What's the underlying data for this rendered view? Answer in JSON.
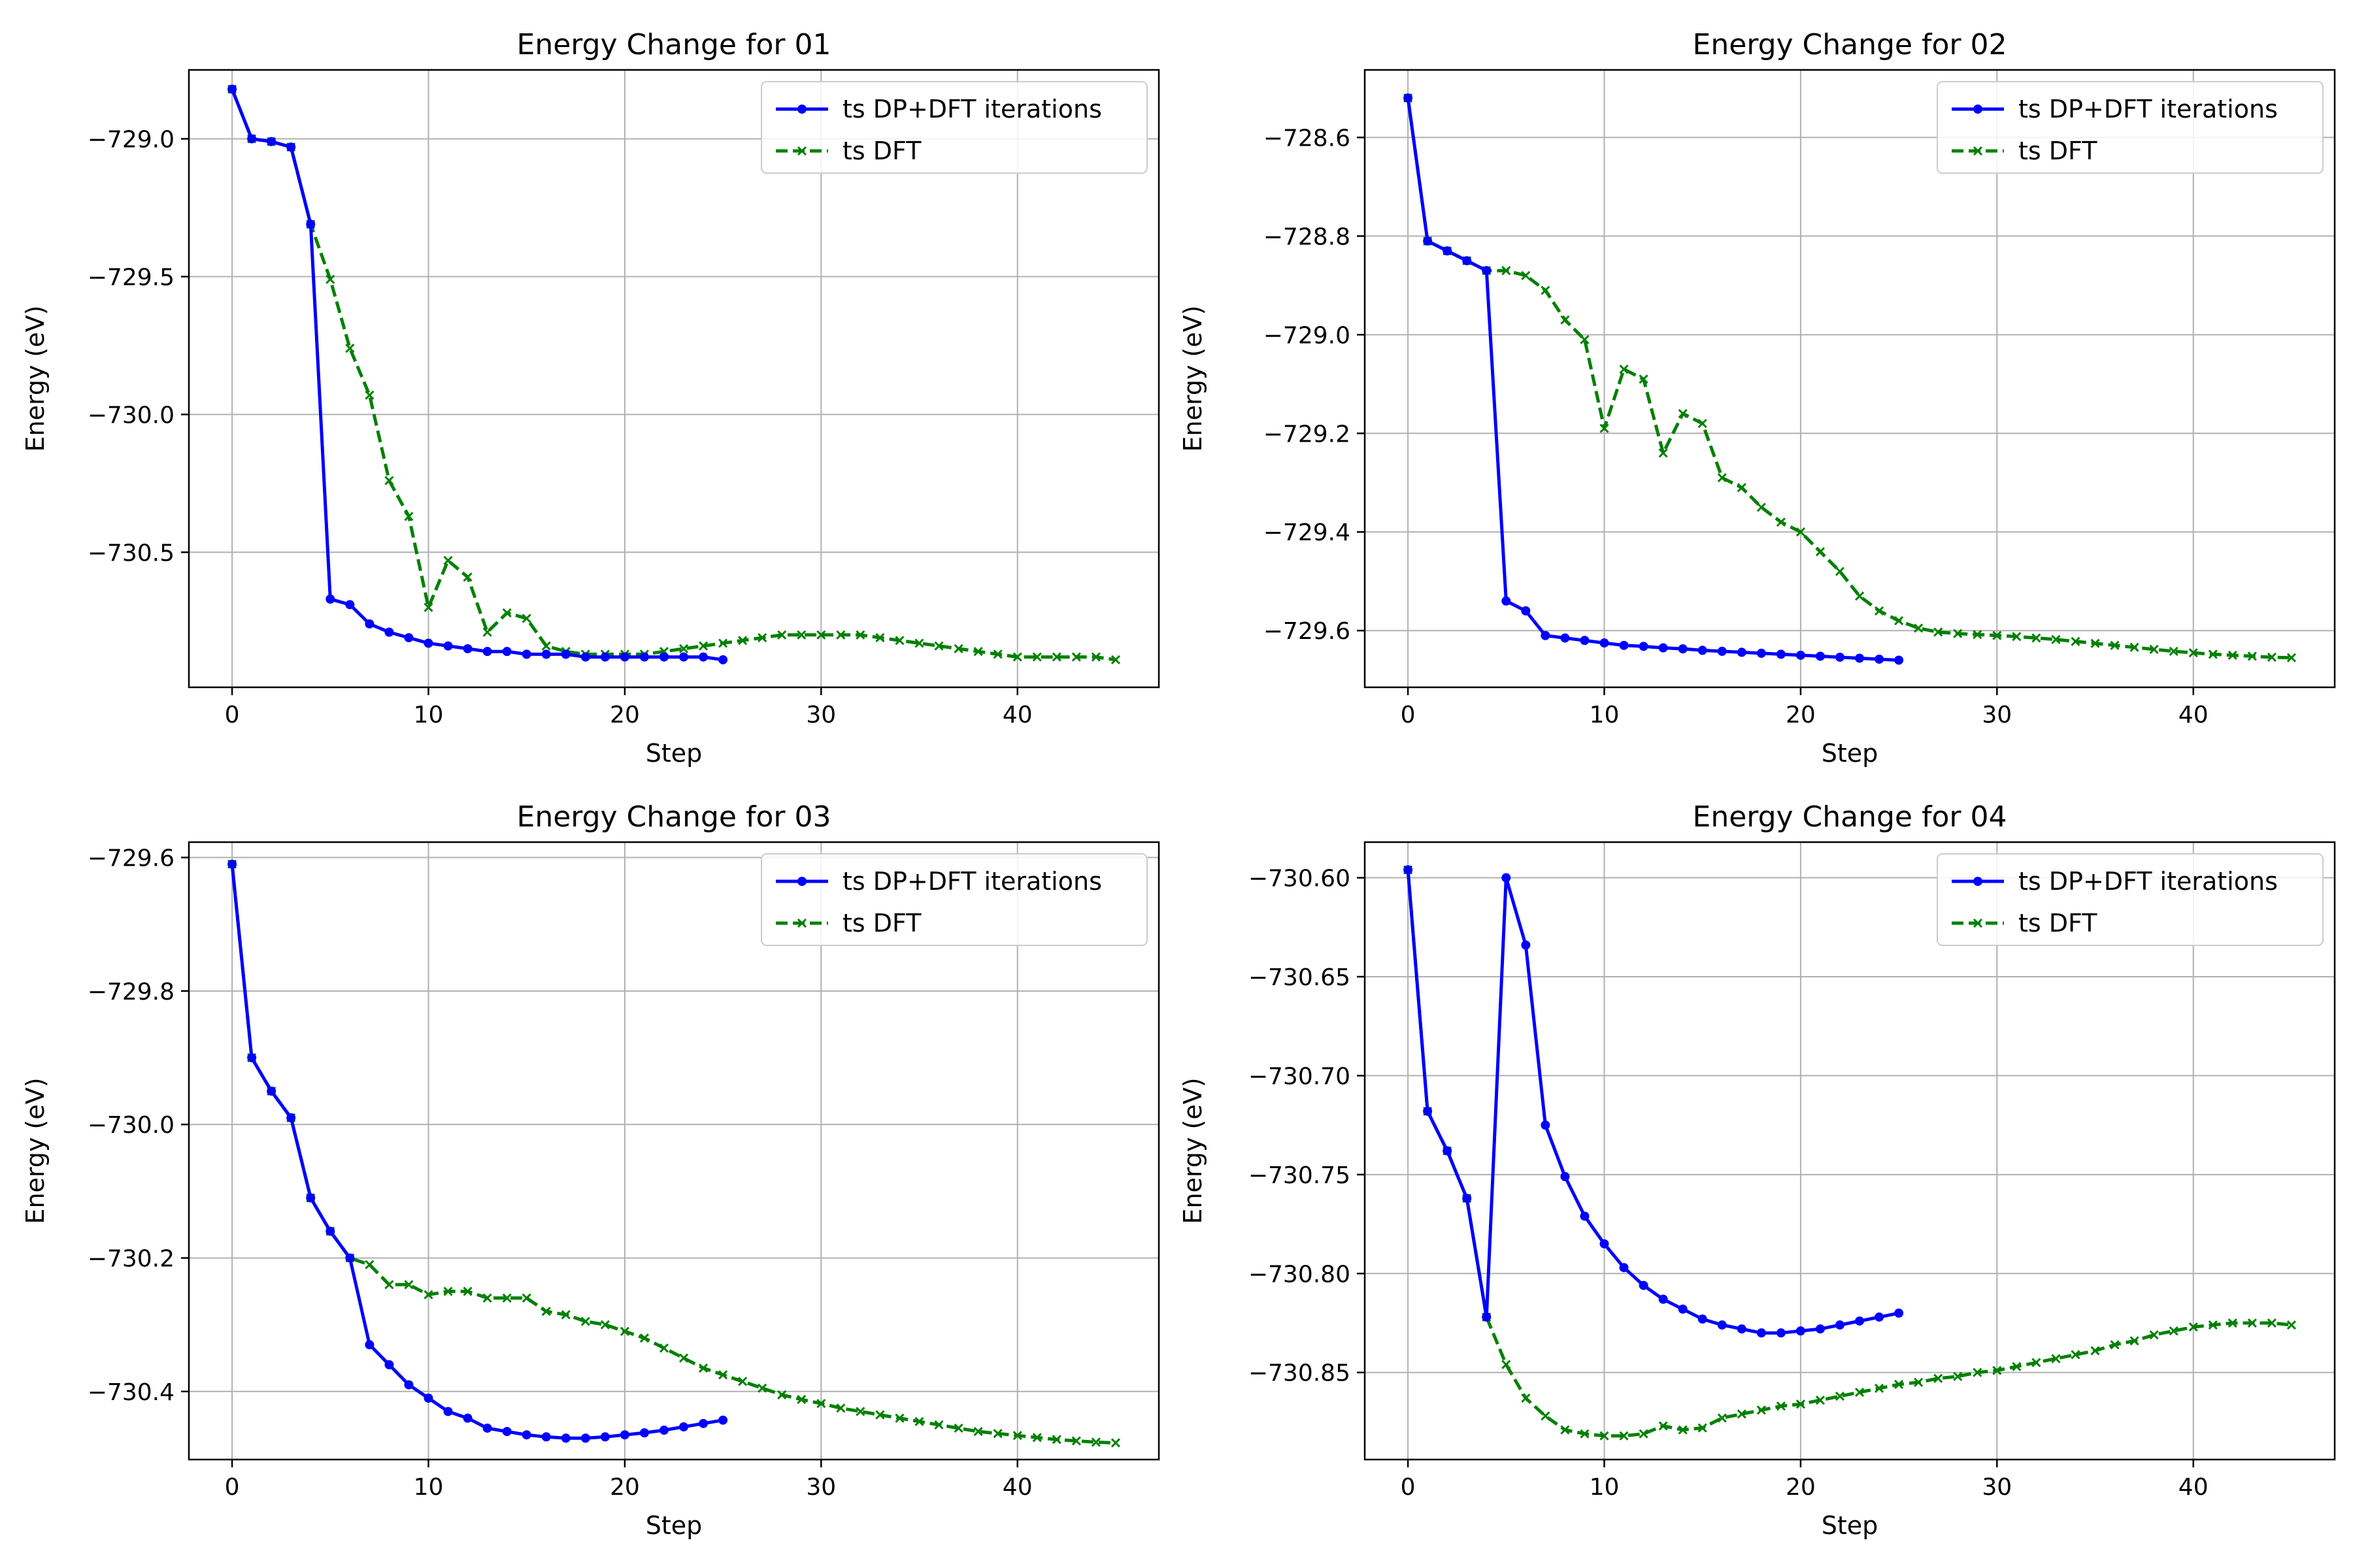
{
  "chart_data": [
    {
      "type": "line",
      "title": "Energy Change for 01",
      "xlabel": "Step",
      "ylabel": "Energy (eV)",
      "xlim": [
        -2.2,
        47.2
      ],
      "ylim": [
        -730.99,
        -728.75
      ],
      "xticks": [
        0,
        10,
        20,
        30,
        40
      ],
      "xtick_labels": [
        "0",
        "10",
        "20",
        "30",
        "40"
      ],
      "yticks": [
        -729.0,
        -729.5,
        -730.0,
        -730.5
      ],
      "ytick_labels": [
        "−729.0",
        "−729.5",
        "−730.0",
        "−730.5"
      ],
      "grid": true,
      "legend": "top-right",
      "series": [
        {
          "name": "ts DP+DFT iterations",
          "color": "#0000ff",
          "style": "solid",
          "marker": "dot",
          "x": [
            0,
            1,
            2,
            3,
            4,
            5,
            6,
            7,
            8,
            9,
            10,
            11,
            12,
            13,
            14,
            15,
            16,
            17,
            18,
            19,
            20,
            21,
            22,
            23,
            24,
            25
          ],
          "y": [
            -728.82,
            -729.0,
            -729.01,
            -729.03,
            -729.31,
            -730.67,
            -730.69,
            -730.76,
            -730.79,
            -730.81,
            -730.83,
            -730.84,
            -730.85,
            -730.86,
            -730.86,
            -730.87,
            -730.87,
            -730.87,
            -730.88,
            -730.88,
            -730.88,
            -730.88,
            -730.88,
            -730.88,
            -730.88,
            -730.89
          ]
        },
        {
          "name": "ts DFT",
          "color": "#008000",
          "style": "dashed",
          "marker": "x",
          "x": [
            0,
            1,
            2,
            3,
            4,
            5,
            6,
            7,
            8,
            9,
            10,
            11,
            12,
            13,
            14,
            15,
            16,
            17,
            18,
            19,
            20,
            21,
            22,
            23,
            24,
            25,
            26,
            27,
            28,
            29,
            30,
            31,
            32,
            33,
            34,
            35,
            36,
            37,
            38,
            39,
            40,
            41,
            42,
            43,
            44,
            45
          ],
          "y": [
            -728.82,
            -729.0,
            -729.01,
            -729.03,
            -729.31,
            -729.51,
            -729.76,
            -729.93,
            -730.24,
            -730.37,
            -730.7,
            -730.53,
            -730.59,
            -730.79,
            -730.72,
            -730.74,
            -730.84,
            -730.86,
            -730.87,
            -730.87,
            -730.87,
            -730.87,
            -730.86,
            -730.85,
            -730.84,
            -730.83,
            -730.82,
            -730.81,
            -730.8,
            -730.8,
            -730.8,
            -730.8,
            -730.8,
            -730.81,
            -730.82,
            -730.83,
            -730.84,
            -730.85,
            -730.86,
            -730.87,
            -730.88,
            -730.88,
            -730.88,
            -730.88,
            -730.88,
            -730.89
          ]
        }
      ]
    },
    {
      "type": "line",
      "title": "Energy Change for 02",
      "xlabel": "Step",
      "ylabel": "Energy (eV)",
      "xlim": [
        -2.2,
        47.2
      ],
      "ylim": [
        -729.715,
        -728.463
      ],
      "xticks": [
        0,
        10,
        20,
        30,
        40
      ],
      "xtick_labels": [
        "0",
        "10",
        "20",
        "30",
        "40"
      ],
      "yticks": [
        -728.6,
        -728.8,
        -729.0,
        -729.2,
        -729.4,
        -729.6
      ],
      "ytick_labels": [
        "−728.6",
        "−728.8",
        "−729.0",
        "−729.2",
        "−729.4",
        "−729.6"
      ],
      "grid": true,
      "legend": "top-right",
      "series": [
        {
          "name": "ts DP+DFT iterations",
          "color": "#0000ff",
          "style": "solid",
          "marker": "dot",
          "x": [
            0,
            1,
            2,
            3,
            4,
            5,
            6,
            7,
            8,
            9,
            10,
            11,
            12,
            13,
            14,
            15,
            16,
            17,
            18,
            19,
            20,
            21,
            22,
            23,
            24,
            25
          ],
          "y": [
            -728.52,
            -728.81,
            -728.83,
            -728.85,
            -728.87,
            -729.54,
            -729.56,
            -729.61,
            -729.615,
            -729.62,
            -729.625,
            -729.63,
            -729.632,
            -729.635,
            -729.637,
            -729.64,
            -729.642,
            -729.644,
            -729.646,
            -729.648,
            -729.65,
            -729.652,
            -729.654,
            -729.656,
            -729.658,
            -729.66
          ]
        },
        {
          "name": "ts DFT",
          "color": "#008000",
          "style": "dashed",
          "marker": "x",
          "x": [
            0,
            1,
            2,
            3,
            4,
            5,
            6,
            7,
            8,
            9,
            10,
            11,
            12,
            13,
            14,
            15,
            16,
            17,
            18,
            19,
            20,
            21,
            22,
            23,
            24,
            25,
            26,
            27,
            28,
            29,
            30,
            31,
            32,
            33,
            34,
            35,
            36,
            37,
            38,
            39,
            40,
            41,
            42,
            43,
            44,
            45
          ],
          "y": [
            -728.52,
            -728.81,
            -728.83,
            -728.85,
            -728.87,
            -728.87,
            -728.88,
            -728.91,
            -728.97,
            -729.01,
            -729.19,
            -729.07,
            -729.09,
            -729.24,
            -729.16,
            -729.18,
            -729.29,
            -729.31,
            -729.35,
            -729.38,
            -729.4,
            -729.44,
            -729.48,
            -729.53,
            -729.56,
            -729.58,
            -729.595,
            -729.603,
            -729.606,
            -729.608,
            -729.61,
            -729.612,
            -729.615,
            -729.618,
            -729.622,
            -729.626,
            -729.63,
            -729.634,
            -729.638,
            -729.642,
            -729.645,
            -729.648,
            -729.65,
            -729.652,
            -729.654,
            -729.655
          ]
        }
      ]
    },
    {
      "type": "line",
      "title": "Energy Change for 03",
      "xlabel": "Step",
      "ylabel": "Energy (eV)",
      "xlim": [
        -2.2,
        47.2
      ],
      "ylim": [
        -730.502,
        -729.577
      ],
      "xticks": [
        0,
        10,
        20,
        30,
        40
      ],
      "xtick_labels": [
        "0",
        "10",
        "20",
        "30",
        "40"
      ],
      "yticks": [
        -729.6,
        -729.8,
        -730.0,
        -730.2,
        -730.4
      ],
      "ytick_labels": [
        "−729.6",
        "−729.8",
        "−730.0",
        "−730.2",
        "−730.4"
      ],
      "grid": true,
      "legend": "top-right",
      "series": [
        {
          "name": "ts DP+DFT iterations",
          "color": "#0000ff",
          "style": "solid",
          "marker": "dot",
          "x": [
            0,
            1,
            2,
            3,
            4,
            5,
            6,
            7,
            8,
            9,
            10,
            11,
            12,
            13,
            14,
            15,
            16,
            17,
            18,
            19,
            20,
            21,
            22,
            23,
            24,
            25
          ],
          "y": [
            -729.61,
            -729.9,
            -729.95,
            -729.99,
            -730.11,
            -730.16,
            -730.2,
            -730.33,
            -730.36,
            -730.39,
            -730.41,
            -730.43,
            -730.44,
            -730.455,
            -730.46,
            -730.465,
            -730.468,
            -730.47,
            -730.47,
            -730.468,
            -730.465,
            -730.462,
            -730.458,
            -730.453,
            -730.448,
            -730.443
          ]
        },
        {
          "name": "ts DFT",
          "color": "#008000",
          "style": "dashed",
          "marker": "x",
          "x": [
            0,
            1,
            2,
            3,
            4,
            5,
            6,
            7,
            8,
            9,
            10,
            11,
            12,
            13,
            14,
            15,
            16,
            17,
            18,
            19,
            20,
            21,
            22,
            23,
            24,
            25,
            26,
            27,
            28,
            29,
            30,
            31,
            32,
            33,
            34,
            35,
            36,
            37,
            38,
            39,
            40,
            41,
            42,
            43,
            44,
            45
          ],
          "y": [
            -729.61,
            -729.9,
            -729.95,
            -729.99,
            -730.11,
            -730.16,
            -730.2,
            -730.21,
            -730.24,
            -730.24,
            -730.255,
            -730.25,
            -730.25,
            -730.26,
            -730.26,
            -730.26,
            -730.28,
            -730.285,
            -730.295,
            -730.3,
            -730.31,
            -730.32,
            -730.335,
            -730.35,
            -730.365,
            -730.375,
            -730.385,
            -730.395,
            -730.405,
            -730.412,
            -730.418,
            -730.425,
            -730.43,
            -730.435,
            -730.44,
            -730.445,
            -730.45,
            -730.455,
            -730.46,
            -730.463,
            -730.466,
            -730.469,
            -730.472,
            -730.474,
            -730.476,
            -730.477
          ]
        }
      ]
    },
    {
      "type": "line",
      "title": "Energy Change for 04",
      "xlabel": "Step",
      "ylabel": "Energy (eV)",
      "xlim": [
        -2.2,
        47.2
      ],
      "ylim": [
        -730.894,
        -730.582
      ],
      "xticks": [
        0,
        10,
        20,
        30,
        40
      ],
      "xtick_labels": [
        "0",
        "10",
        "20",
        "30",
        "40"
      ],
      "yticks": [
        -730.6,
        -730.65,
        -730.7,
        -730.75,
        -730.8,
        -730.85
      ],
      "ytick_labels": [
        "−730.60",
        "−730.65",
        "−730.70",
        "−730.75",
        "−730.80",
        "−730.85"
      ],
      "grid": true,
      "legend": "top-right",
      "series": [
        {
          "name": "ts DP+DFT iterations",
          "color": "#0000ff",
          "style": "solid",
          "marker": "dot",
          "x": [
            0,
            1,
            2,
            3,
            4,
            5,
            6,
            7,
            8,
            9,
            10,
            11,
            12,
            13,
            14,
            15,
            16,
            17,
            18,
            19,
            20,
            21,
            22,
            23,
            24,
            25
          ],
          "y": [
            -730.596,
            -730.718,
            -730.738,
            -730.762,
            -730.822,
            -730.6,
            -730.634,
            -730.725,
            -730.751,
            -730.771,
            -730.785,
            -730.797,
            -730.806,
            -730.813,
            -730.818,
            -730.823,
            -730.826,
            -730.828,
            -730.83,
            -730.83,
            -730.829,
            -730.828,
            -730.826,
            -730.824,
            -730.822,
            -730.82
          ]
        },
        {
          "name": "ts DFT",
          "color": "#008000",
          "style": "dashed",
          "marker": "x",
          "x": [
            0,
            1,
            2,
            3,
            4,
            5,
            6,
            7,
            8,
            9,
            10,
            11,
            12,
            13,
            14,
            15,
            16,
            17,
            18,
            19,
            20,
            21,
            22,
            23,
            24,
            25,
            26,
            27,
            28,
            29,
            30,
            31,
            32,
            33,
            34,
            35,
            36,
            37,
            38,
            39,
            40,
            41,
            42,
            43,
            44,
            45
          ],
          "y": [
            -730.596,
            -730.718,
            -730.738,
            -730.762,
            -730.822,
            -730.846,
            -730.863,
            -730.872,
            -730.879,
            -730.881,
            -730.882,
            -730.882,
            -730.881,
            -730.877,
            -730.879,
            -730.878,
            -730.873,
            -730.871,
            -730.869,
            -730.867,
            -730.866,
            -730.864,
            -730.862,
            -730.86,
            -730.858,
            -730.856,
            -730.855,
            -730.853,
            -730.852,
            -730.85,
            -730.849,
            -730.847,
            -730.845,
            -730.843,
            -730.841,
            -730.839,
            -730.836,
            -730.834,
            -730.831,
            -730.829,
            -730.827,
            -730.826,
            -730.825,
            -730.825,
            -730.825,
            -730.826
          ]
        }
      ]
    }
  ]
}
